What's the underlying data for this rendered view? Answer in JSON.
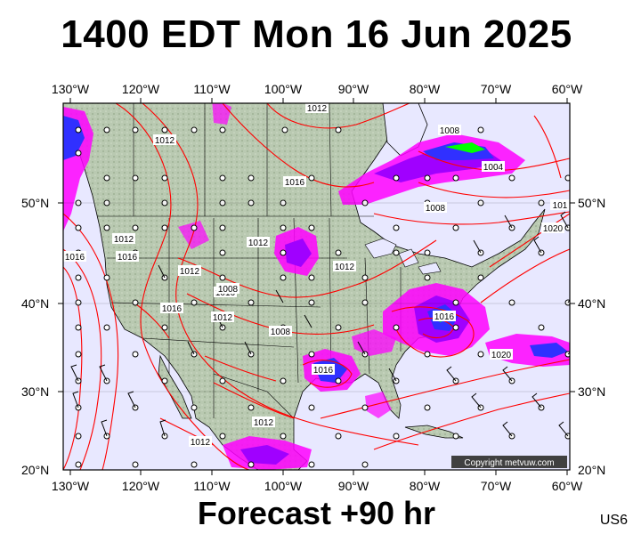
{
  "title": "1400 EDT Mon 16 Jun 2025",
  "footer": "Forecast +90 hr",
  "region_code": "US6",
  "copyright": "Copyright metvuw.com",
  "longitude_labels": [
    "130°W",
    "120°W",
    "110°W",
    "100°W",
    "90°W",
    "80°W",
    "70°W",
    "60°W"
  ],
  "latitude_labels": [
    "50°N",
    "40°N",
    "30°N",
    "20°N"
  ],
  "isobar_labels": [
    "1012",
    "1012",
    "1012",
    "1012",
    "1012",
    "1012",
    "1012",
    "1012",
    "1012",
    "1016",
    "1016",
    "1016",
    "1016",
    "1016",
    "1016",
    "1016",
    "1020",
    "1020",
    "1008",
    "1008",
    "1008",
    "1008",
    "1004",
    "101"
  ],
  "colors": {
    "isobar": "#ff0000",
    "ocean": "#e8e8ff",
    "land": "#b8c8b0",
    "precip_light": "#ff00ff",
    "precip_medium": "#a000ff",
    "precip_heavy": "#3030ff",
    "precip_extreme": "#00ff00"
  }
}
